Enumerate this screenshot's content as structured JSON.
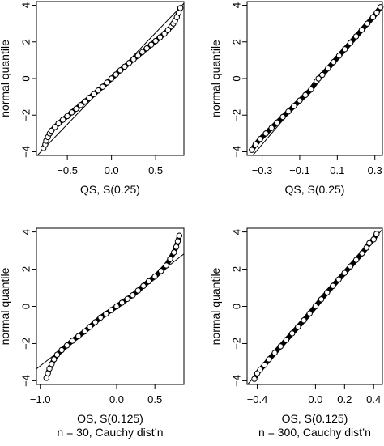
{
  "chart_data": [
    {
      "type": "scatter",
      "panel": "top-left",
      "xlabel": "QS, S(0.25)",
      "ylabel": "normal quantile",
      "subtitle": "",
      "xlim": [
        -0.85,
        0.82
      ],
      "ylim": [
        -4.2,
        4.2
      ],
      "xticks": [
        -0.5,
        0.0,
        0.5
      ],
      "yticks": [
        -4,
        -2,
        0,
        2,
        4
      ],
      "xtick_labels": [
        "−0.5",
        "0.0",
        "0.5"
      ],
      "ytick_labels": [
        "−4",
        "−2",
        "0",
        "2",
        "4"
      ],
      "grid": false,
      "reference_line": {
        "slope": 5.0,
        "intercept": 0.0
      },
      "x": [
        -0.77,
        -0.75,
        -0.74,
        -0.72,
        -0.7,
        -0.68,
        -0.64,
        -0.6,
        -0.55,
        -0.5,
        -0.45,
        -0.4,
        -0.35,
        -0.3,
        -0.25,
        -0.2,
        -0.15,
        -0.1,
        -0.05,
        0.0,
        0.05,
        0.1,
        0.15,
        0.2,
        0.25,
        0.3,
        0.35,
        0.4,
        0.45,
        0.5,
        0.55,
        0.6,
        0.64,
        0.68,
        0.7,
        0.72,
        0.74,
        0.76,
        0.78
      ],
      "y": [
        -3.8,
        -3.6,
        -3.4,
        -3.2,
        -3.0,
        -2.85,
        -2.65,
        -2.45,
        -2.25,
        -2.05,
        -1.85,
        -1.65,
        -1.45,
        -1.25,
        -1.05,
        -0.85,
        -0.65,
        -0.45,
        -0.22,
        0.0,
        0.22,
        0.45,
        0.65,
        0.85,
        1.05,
        1.25,
        1.45,
        1.65,
        1.85,
        2.05,
        2.25,
        2.45,
        2.65,
        2.85,
        3.0,
        3.15,
        3.35,
        3.6,
        3.85
      ]
    },
    {
      "type": "scatter",
      "panel": "top-right",
      "xlabel": "QS, S(0.25)",
      "ylabel": "normal quantile",
      "subtitle": "",
      "xlim": [
        -0.38,
        0.34
      ],
      "ylim": [
        -4.2,
        4.2
      ],
      "xticks": [
        -0.3,
        -0.1,
        0.1,
        0.3
      ],
      "yticks": [
        -4,
        -2,
        0,
        2,
        4
      ],
      "xtick_labels": [
        "−0.3",
        "−0.1",
        "0.1",
        "0.3"
      ],
      "ytick_labels": [
        "−4",
        "−2",
        "0",
        "2",
        "4"
      ],
      "grid": false,
      "reference_line": {
        "slope": 12.0,
        "intercept": 0.0
      },
      "x": [
        -0.355,
        -0.335,
        -0.31,
        -0.28,
        -0.25,
        -0.22,
        -0.19,
        -0.16,
        -0.13,
        -0.1,
        -0.07,
        -0.04,
        -0.01,
        0.0,
        0.02,
        0.05,
        0.08,
        0.11,
        0.14,
        0.17,
        0.2,
        0.23,
        0.26,
        0.29,
        0.31,
        0.33
      ],
      "y": [
        -3.9,
        -3.6,
        -3.3,
        -3.0,
        -2.7,
        -2.4,
        -2.1,
        -1.8,
        -1.5,
        -1.2,
        -0.9,
        -0.6,
        -0.15,
        0.0,
        0.2,
        0.55,
        0.9,
        1.25,
        1.6,
        1.95,
        2.3,
        2.65,
        3.0,
        3.35,
        3.6,
        3.9
      ]
    },
    {
      "type": "scatter",
      "panel": "bottom-left",
      "xlabel": "OS, S(0.125)",
      "ylabel": "normal quantile",
      "subtitle": "n = 30, Cauchy dist’n",
      "xlim": [
        -1.05,
        0.88
      ],
      "ylim": [
        -4.2,
        4.2
      ],
      "xticks": [
        -1.0,
        0.0,
        0.5
      ],
      "yticks": [
        -4,
        -2,
        0,
        2,
        4
      ],
      "xtick_labels": [
        "−1.0",
        "0.0",
        "0.5"
      ],
      "ytick_labels": [
        "−4",
        "−2",
        "0",
        "2",
        "4"
      ],
      "grid": false,
      "reference_line": {
        "slope": 3.2,
        "intercept": 0.0
      },
      "x": [
        -0.92,
        -0.9,
        -0.88,
        -0.85,
        -0.82,
        -0.78,
        -0.72,
        -0.65,
        -0.58,
        -0.5,
        -0.42,
        -0.35,
        -0.28,
        -0.21,
        -0.14,
        -0.07,
        0.0,
        0.07,
        0.14,
        0.21,
        0.28,
        0.35,
        0.42,
        0.5,
        0.58,
        0.65,
        0.7,
        0.75,
        0.78,
        0.8,
        0.82
      ],
      "y": [
        -3.85,
        -3.6,
        -3.35,
        -3.1,
        -2.85,
        -2.6,
        -2.35,
        -2.1,
        -1.85,
        -1.6,
        -1.35,
        -1.1,
        -0.85,
        -0.6,
        -0.4,
        -0.2,
        0.0,
        0.2,
        0.4,
        0.6,
        0.85,
        1.1,
        1.35,
        1.6,
        1.9,
        2.2,
        2.55,
        2.9,
        3.2,
        3.5,
        3.8
      ]
    },
    {
      "type": "scatter",
      "panel": "bottom-right",
      "xlabel": "OS, S(0.125)",
      "ylabel": "normal quantile",
      "subtitle": "n = 300, Cauchy dist’n",
      "xlim": [
        -0.47,
        0.46
      ],
      "ylim": [
        -4.2,
        4.2
      ],
      "xticks": [
        -0.4,
        0.0,
        0.2,
        0.4
      ],
      "yticks": [
        -4,
        -2,
        0,
        2,
        4
      ],
      "xtick_labels": [
        "−0.4",
        "0.0",
        "0.2",
        "0.4"
      ],
      "ytick_labels": [
        "−4",
        "−2",
        "0",
        "2",
        "4"
      ],
      "grid": false,
      "reference_line": {
        "slope": 9.0,
        "intercept": 0.0
      },
      "x": [
        -0.42,
        -0.4,
        -0.38,
        -0.35,
        -0.32,
        -0.28,
        -0.24,
        -0.2,
        -0.16,
        -0.12,
        -0.08,
        -0.04,
        0.0,
        0.04,
        0.08,
        0.12,
        0.16,
        0.2,
        0.24,
        0.28,
        0.32,
        0.35,
        0.37,
        0.4,
        0.42
      ],
      "y": [
        -3.9,
        -3.6,
        -3.4,
        -3.15,
        -2.85,
        -2.5,
        -2.15,
        -1.8,
        -1.45,
        -1.1,
        -0.75,
        -0.38,
        0.0,
        0.38,
        0.75,
        1.1,
        1.45,
        1.8,
        2.15,
        2.5,
        2.85,
        3.15,
        3.4,
        3.6,
        3.9
      ]
    }
  ]
}
